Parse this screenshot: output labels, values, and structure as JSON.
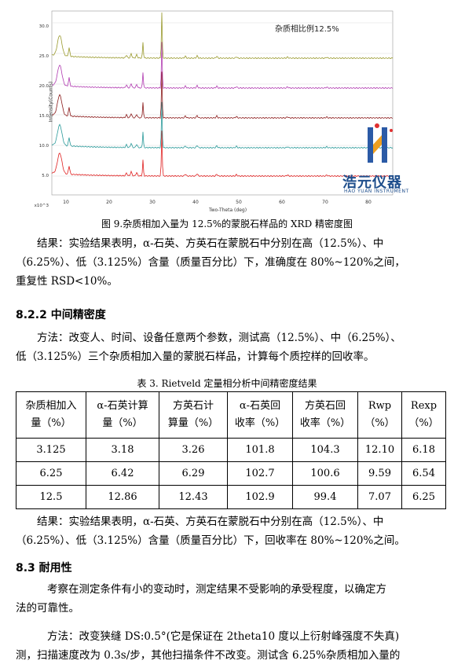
{
  "figure": {
    "y_axis_title": "Intensity(Counts)",
    "y_ticks": [
      "30.0",
      "25.0",
      "20.0",
      "15.0",
      "10.0",
      "5.0",
      "x10^3"
    ],
    "x_axis_title": "Two-Theta (deg)",
    "x_ticks": [
      "10",
      "20",
      "30",
      "40",
      "50",
      "60",
      "70",
      "80"
    ],
    "inset_label": "杂质相比例12.5%",
    "series_colors": [
      "#9a9a2e",
      "#b03ab0",
      "#8b1a1a",
      "#2a9a9a",
      "#e02020"
    ],
    "logo_cn": "浩元仪器",
    "logo_en": "HAO YUAN INSTRUMENT",
    "caption": "图 9.杂质相加入量为 12.5%的蒙脱石样品的 XRD 精密度图"
  },
  "para1": {
    "line1": "结果：实验结果表明，α-石英、方英石在蒙脱石中分别在高（12.5%）、中",
    "line2": "（6.25%）、低（3.125%）含量（质量百分比）下，准确度在  80%~120%之间，",
    "line3": "重复性 RSD<10%。"
  },
  "heading_822": "8.2.2 中间精密度",
  "para2": {
    "line1": "方法：改变人、时间、设备任意两个参数，测试高（12.5%）、中（6.25%）、",
    "line2": "低（3.125%）三个杂质相加入量的蒙脱石样品，计算每个质控样的回收率。"
  },
  "table_caption": "表 3. Rietveld 定量相分析中间精密度结果",
  "table": {
    "headers": [
      [
        "杂质相加入",
        "量（%）"
      ],
      [
        "α-石英计算",
        "量（%）"
      ],
      [
        "方英石计",
        "算量（%）"
      ],
      [
        "α-石英回",
        "收率（%）"
      ],
      [
        "方英石回",
        "收率（%）"
      ],
      [
        "Rwp",
        "（%）"
      ],
      [
        "Rexp",
        "（%）"
      ]
    ],
    "rows": [
      [
        "3.125",
        "3.18",
        "3.26",
        "101.8",
        "104.3",
        "12.10",
        "6.18"
      ],
      [
        "6.25",
        "6.42",
        "6.29",
        "102.7",
        "100.6",
        "9.59",
        "6.54"
      ],
      [
        "12.5",
        "12.86",
        "12.43",
        "102.9",
        "99.4",
        "7.07",
        "6.25"
      ]
    ]
  },
  "para3": {
    "line1": "结果：实验结果表明，α-石英、方英石在蒙脱石中分别在高（12.5%）、中",
    "line2": "（6.25%）、低（3.125%）含量（质量百分比）下，回收率在 80%~120%之间。"
  },
  "heading_83": "8.3 耐用性",
  "para4": {
    "line1": "考察在测定条件有小的变动时，测定结果不受影响的承受程度，以确定方",
    "line2": "法的可靠性。"
  },
  "para5": {
    "line1": "方法：改变狭缝  DS:0.5°(它是保证在  2theta10  度以上衍射峰强度不失真)",
    "line2": "测，扫描速度改为 0.3s/步，其他扫描条件不改变。测试含 6.25%杂质相加入量的"
  }
}
